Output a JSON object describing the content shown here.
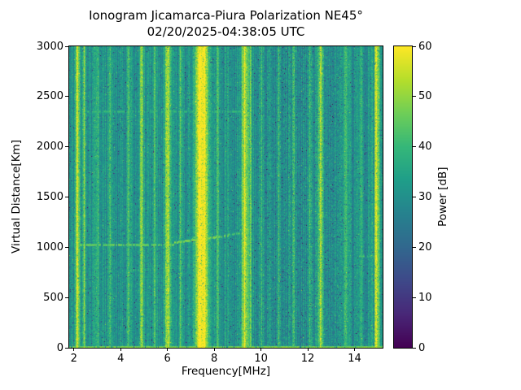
{
  "title": {
    "line1": "Ionogram Jicamarca-Piura Polarization NE45°",
    "line2": "02/20/2025-04:38:05 UTC"
  },
  "chart_data": {
    "type": "heatmap",
    "title": "Ionogram Jicamarca-Piura Polarization NE45°",
    "subtitle": "02/20/2025-04:38:05 UTC",
    "xlabel": "Frequency[MHz]",
    "ylabel": "Virtual Distance[Km]",
    "colorbar_label": "Power [dB]",
    "colormap": "viridis",
    "x_range": [
      1.8,
      15.2
    ],
    "y_range": [
      0,
      3000
    ],
    "power_range": [
      0,
      60
    ],
    "x_ticks": [
      2,
      4,
      6,
      8,
      10,
      12,
      14
    ],
    "y_ticks": [
      0,
      500,
      1000,
      1500,
      2000,
      2500,
      3000
    ],
    "colorbar_ticks": [
      0,
      10,
      20,
      30,
      40,
      50,
      60
    ],
    "background_power_db": {
      "mean": 31,
      "column_variation": 5,
      "pixel_variation": 5
    },
    "noise_seed": 42,
    "quiet_band": {
      "freq_start_mhz": 9.8,
      "freq_end_mhz": 13.5,
      "db_offset": -1.5,
      "variance_factor": 1.3
    },
    "rfi_stripes": [
      {
        "freq_mhz": 2.15,
        "width_mhz": 0.06,
        "peak_db_above_bg": 26
      },
      {
        "freq_mhz": 2.45,
        "width_mhz": 0.05,
        "peak_db_above_bg": 16
      },
      {
        "freq_mhz": 3.0,
        "width_mhz": 0.05,
        "peak_db_above_bg": 10
      },
      {
        "freq_mhz": 3.55,
        "width_mhz": 0.05,
        "peak_db_above_bg": 12
      },
      {
        "freq_mhz": 4.35,
        "width_mhz": 0.05,
        "peak_db_above_bg": 10
      },
      {
        "freq_mhz": 4.9,
        "width_mhz": 0.06,
        "peak_db_above_bg": 18
      },
      {
        "freq_mhz": 5.45,
        "width_mhz": 0.05,
        "peak_db_above_bg": 10
      },
      {
        "freq_mhz": 6.0,
        "width_mhz": 0.08,
        "peak_db_above_bg": 24
      },
      {
        "freq_mhz": 6.55,
        "width_mhz": 0.05,
        "peak_db_above_bg": 12
      },
      {
        "freq_mhz": 7.35,
        "width_mhz": 0.12,
        "peak_db_above_bg": 28
      },
      {
        "freq_mhz": 7.6,
        "width_mhz": 0.1,
        "peak_db_above_bg": 27
      },
      {
        "freq_mhz": 8.15,
        "width_mhz": 0.05,
        "peak_db_above_bg": 10
      },
      {
        "freq_mhz": 9.3,
        "width_mhz": 0.09,
        "peak_db_above_bg": 25
      },
      {
        "freq_mhz": 9.55,
        "width_mhz": 0.05,
        "peak_db_above_bg": 12
      },
      {
        "freq_mhz": 10.0,
        "width_mhz": 0.05,
        "peak_db_above_bg": 12
      },
      {
        "freq_mhz": 10.75,
        "width_mhz": 0.05,
        "peak_db_above_bg": 10
      },
      {
        "freq_mhz": 11.4,
        "width_mhz": 0.05,
        "peak_db_above_bg": 8
      },
      {
        "freq_mhz": 12.1,
        "width_mhz": 0.05,
        "peak_db_above_bg": 11
      },
      {
        "freq_mhz": 12.55,
        "width_mhz": 0.07,
        "peak_db_above_bg": 20
      },
      {
        "freq_mhz": 13.6,
        "width_mhz": 0.05,
        "peak_db_above_bg": 10
      },
      {
        "freq_mhz": 14.3,
        "width_mhz": 0.05,
        "peak_db_above_bg": 8
      },
      {
        "freq_mhz": 14.95,
        "width_mhz": 0.08,
        "peak_db_above_bg": 24
      }
    ],
    "echo_traces": [
      {
        "freq_start_mhz": 1.8,
        "freq_end_mhz": 15.2,
        "km_start": 10,
        "km_end": 10,
        "db_above_bg": 18,
        "dash_fill": 0.9
      },
      {
        "freq_start_mhz": 2.2,
        "freq_end_mhz": 6.3,
        "km_start": 1030,
        "km_end": 1030,
        "db_above_bg": 16,
        "dash_fill": 0.75
      },
      {
        "freq_start_mhz": 6.3,
        "freq_end_mhz": 8.6,
        "km_start": 1050,
        "km_end": 1120,
        "db_above_bg": 18,
        "dash_fill": 0.8
      },
      {
        "freq_start_mhz": 8.6,
        "freq_end_mhz": 9.4,
        "km_start": 1130,
        "km_end": 1150,
        "db_above_bg": 12,
        "dash_fill": 0.5
      },
      {
        "freq_start_mhz": 2.3,
        "freq_end_mhz": 9.4,
        "km_start": 2350,
        "km_end": 2350,
        "db_above_bg": 10,
        "dash_fill": 0.5
      },
      {
        "freq_start_mhz": 4.3,
        "freq_end_mhz": 5.2,
        "km_start": 780,
        "km_end": 780,
        "db_above_bg": 10,
        "dash_fill": 0.5
      },
      {
        "freq_start_mhz": 14.2,
        "freq_end_mhz": 14.9,
        "km_start": 910,
        "km_end": 910,
        "db_above_bg": 12,
        "dash_fill": 0.6
      }
    ],
    "viridis_anchors": [
      "#440154",
      "#482878",
      "#3e4989",
      "#31688e",
      "#26828e",
      "#1f9e89",
      "#35b779",
      "#6ece58",
      "#b5de2b",
      "#fde725"
    ],
    "colors": {
      "figure_background": "#ffffff",
      "axis": "#000000"
    }
  }
}
